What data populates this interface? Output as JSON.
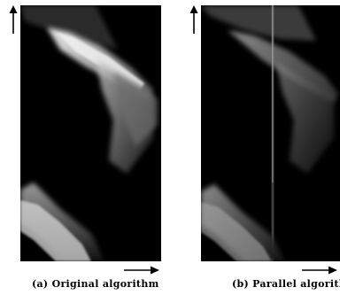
{
  "figure": {
    "panels": [
      {
        "caption": "(a) Original algorithm"
      },
      {
        "caption": "(b) Parallel algorithm"
      }
    ]
  }
}
